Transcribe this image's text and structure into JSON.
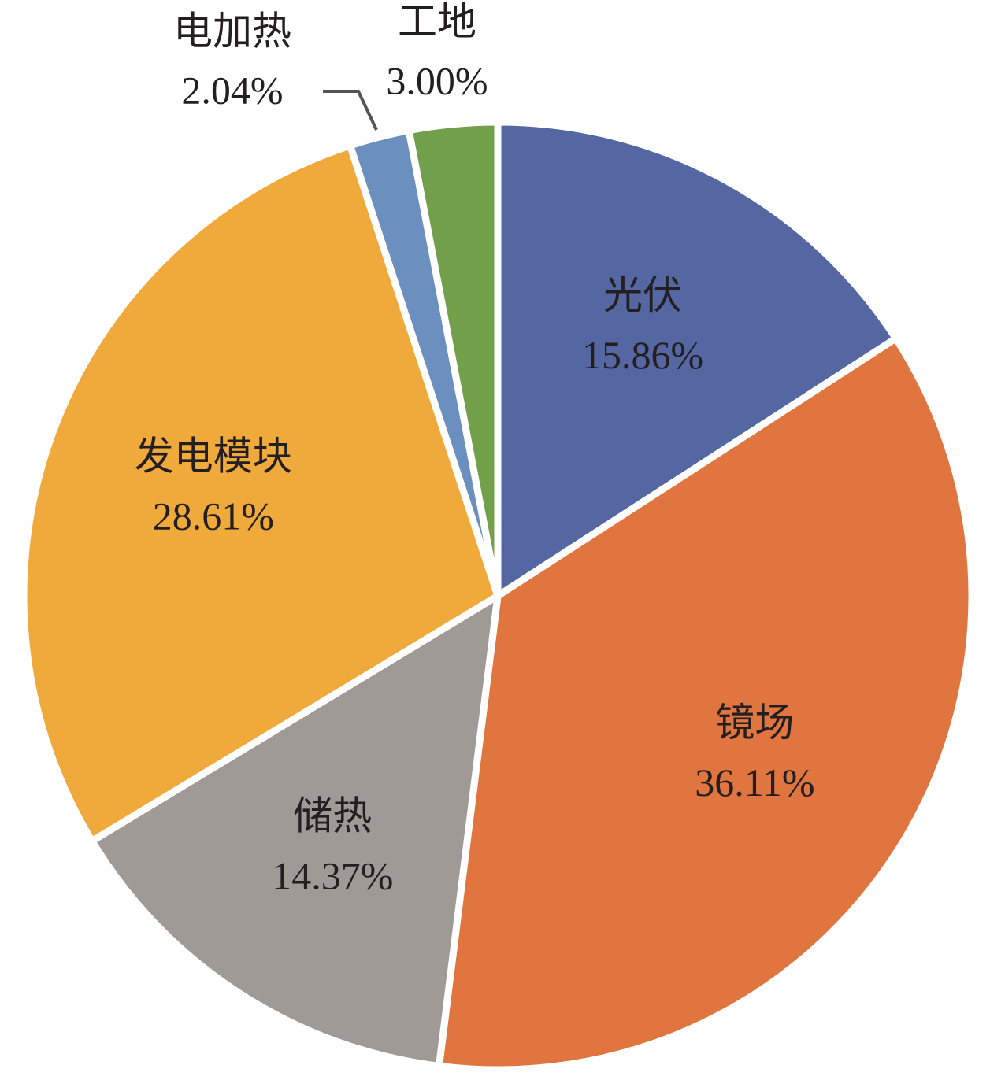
{
  "chart_data": {
    "type": "pie",
    "categories": [
      "光伏",
      "镜场",
      "储热",
      "发电模块",
      "电加热",
      "工地"
    ],
    "values": [
      15.86,
      36.11,
      14.37,
      28.61,
      2.04,
      3.0
    ],
    "value_labels": [
      "15.86%",
      "36.11%",
      "14.37%",
      "28.61%",
      "2.04%",
      "3.00%"
    ],
    "colors": [
      "#5567a3",
      "#e07540",
      "#a09a96",
      "#f0aa3c",
      "#6b8fbf",
      "#72a04a"
    ]
  }
}
